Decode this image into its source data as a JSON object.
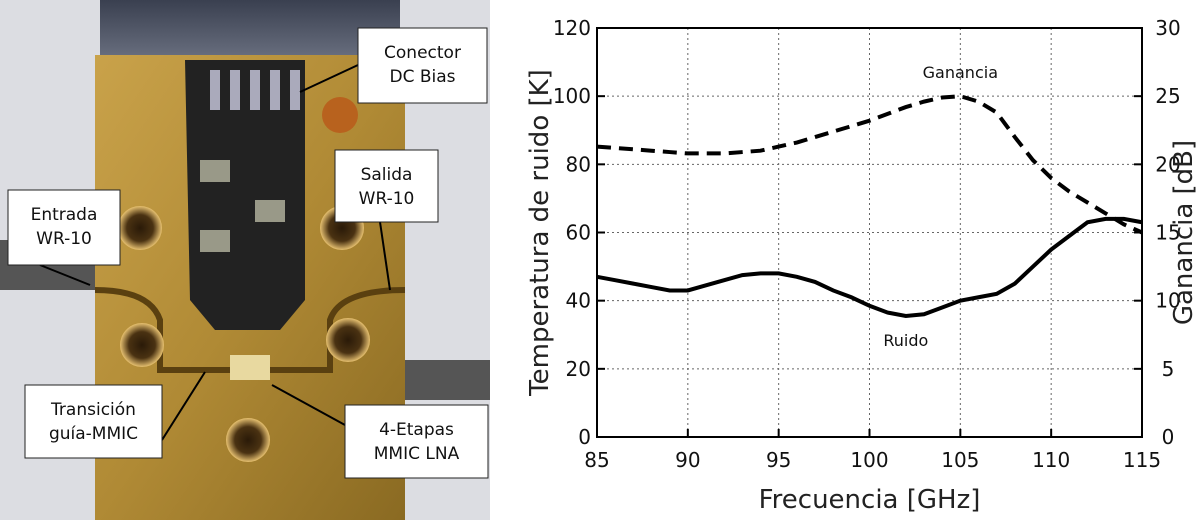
{
  "photo": {
    "labels": [
      {
        "lines": [
          "Conector",
          "DC Bias"
        ]
      },
      {
        "lines": [
          "Salida",
          "WR-10"
        ]
      },
      {
        "lines": [
          "Entrada",
          "WR-10"
        ]
      },
      {
        "lines": [
          "Transición",
          "guía-MMIC"
        ]
      },
      {
        "lines": [
          "4-Etapas",
          "MMIC LNA"
        ]
      }
    ]
  },
  "chart_data": {
    "type": "line",
    "x_label": "Frecuencia [GHz]",
    "y_label": "Temperatura de ruido [K]",
    "y2_label": "Ganancia [dB]",
    "x": [
      85,
      86,
      87,
      88,
      89,
      90,
      91,
      92,
      93,
      94,
      95,
      96,
      97,
      98,
      99,
      100,
      101,
      102,
      103,
      104,
      105,
      106,
      107,
      108,
      109,
      110,
      111,
      112,
      113,
      114,
      115
    ],
    "series": [
      {
        "name": "Ruido",
        "color": "#000000",
        "linestyle": "solid",
        "values": [
          47,
          46,
          45,
          44,
          43,
          43,
          44.5,
          46,
          47.5,
          48,
          48,
          47,
          45.5,
          43,
          41,
          38.5,
          36.5,
          35.5,
          36,
          38,
          40,
          41,
          42,
          45,
          50,
          55,
          59,
          63,
          64,
          64,
          63
        ]
      },
      {
        "name": "Ganancia",
        "color": "#000000",
        "linestyle": "dashed",
        "axis": "y2",
        "values": [
          21.3,
          21.2,
          21.1,
          21,
          20.9,
          20.8,
          20.8,
          20.8,
          20.9,
          21,
          21.3,
          21.6,
          22,
          22.4,
          22.8,
          23.2,
          23.7,
          24.2,
          24.6,
          24.9,
          25,
          24.6,
          23.8,
          22,
          20.3,
          19,
          18,
          17.2,
          16.4,
          15.6,
          15
        ]
      }
    ],
    "xlim": [
      85,
      115
    ],
    "xticks": [
      85,
      90,
      95,
      100,
      105,
      110,
      115
    ],
    "ylim": [
      0,
      120
    ],
    "yticks": [
      0,
      20,
      40,
      60,
      80,
      100,
      120
    ],
    "y2lim": [
      0,
      30
    ],
    "y2ticks": [
      0,
      5,
      10,
      15,
      20,
      25,
      30
    ],
    "grid": true
  }
}
